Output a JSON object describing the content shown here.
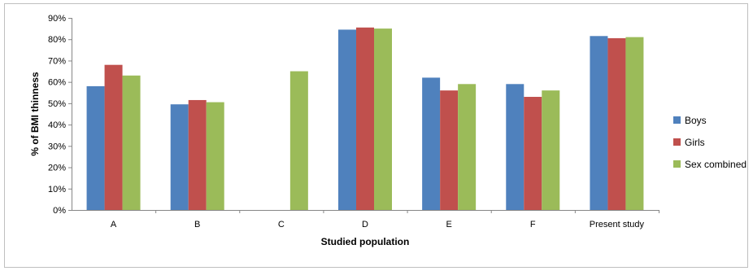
{
  "chart_data": {
    "type": "bar",
    "title": "",
    "xlabel": "Studied population",
    "ylabel": "% of BMI thinness",
    "categories": [
      "A",
      "B",
      "C",
      "D",
      "E",
      "F",
      "Present study"
    ],
    "ylim": [
      0,
      90
    ],
    "yticks": [
      0,
      10,
      20,
      30,
      40,
      50,
      60,
      70,
      80,
      90
    ],
    "ytick_labels": [
      "0%",
      "10%",
      "20%",
      "30%",
      "40%",
      "50%",
      "60%",
      "70%",
      "80%",
      "90%"
    ],
    "grid": false,
    "legend_position": "right",
    "series": [
      {
        "name": "Boys",
        "color": "#4f81bd",
        "values": [
          58,
          49.5,
          null,
          84.5,
          62,
          59,
          81.5
        ]
      },
      {
        "name": "Girls",
        "color": "#c0504d",
        "values": [
          68,
          51.5,
          null,
          85.5,
          56,
          53,
          80.5
        ]
      },
      {
        "name": "Sex combined",
        "color": "#9bbb59",
        "values": [
          63,
          50.5,
          65,
          85,
          59,
          56,
          81
        ]
      }
    ]
  }
}
